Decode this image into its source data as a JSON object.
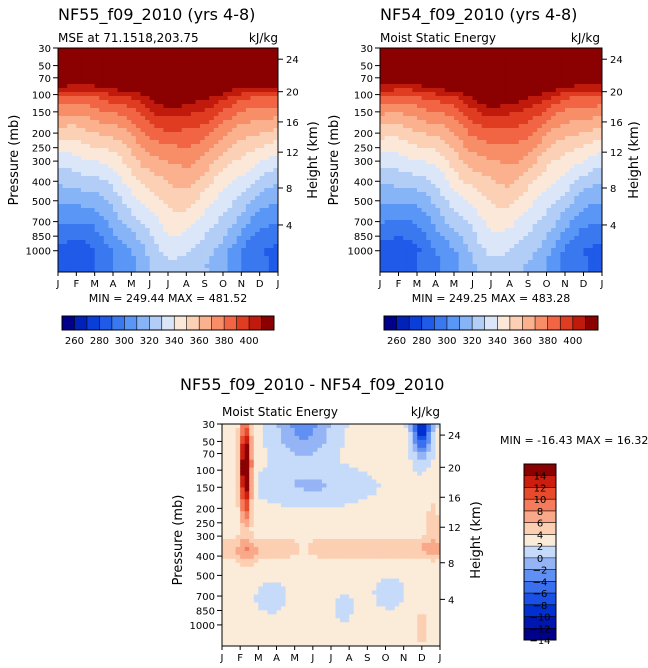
{
  "chart_data": [
    {
      "type": "heatmap",
      "title": "NF55_f09_2010 (yrs 4-8)",
      "subtitle": "MSE at 71.1518,203.75",
      "units": "kJ/kg",
      "ylabel": "Pressure (mb)",
      "ylabel_right": "Height (km)",
      "x_ticks": [
        "J",
        "F",
        "M",
        "A",
        "M",
        "J",
        "J",
        "A",
        "S",
        "O",
        "N",
        "D",
        "J"
      ],
      "y_ticks": [
        "30",
        "50",
        "70",
        "100",
        "150",
        "200",
        "250",
        "300",
        "400",
        "500",
        "700",
        "850",
        "1000"
      ],
      "y_ticks_right": [
        "24",
        "20",
        "16",
        "12",
        "8",
        "4"
      ],
      "stats": "MIN = 249.44 MAX = 481.52",
      "min": 249.44,
      "max": 481.52,
      "colorbar": {
        "levels": [
          250,
          260,
          270,
          280,
          290,
          300,
          310,
          320,
          330,
          340,
          350,
          360,
          370,
          380,
          390,
          400,
          410
        ],
        "labels": [
          "260",
          "280",
          "300",
          "320",
          "340",
          "360",
          "380",
          "400"
        ]
      }
    },
    {
      "type": "heatmap",
      "title": "NF54_f09_2010 (yrs 4-8)",
      "subtitle": "Moist Static Energy",
      "units": "kJ/kg",
      "ylabel": "Pressure (mb)",
      "ylabel_right": "Height (km)",
      "x_ticks": [
        "J",
        "F",
        "M",
        "A",
        "M",
        "J",
        "J",
        "A",
        "S",
        "O",
        "N",
        "D",
        "J"
      ],
      "y_ticks": [
        "30",
        "50",
        "70",
        "100",
        "150",
        "200",
        "250",
        "300",
        "400",
        "500",
        "700",
        "850",
        "1000"
      ],
      "y_ticks_right": [
        "24",
        "20",
        "16",
        "12",
        "8",
        "4"
      ],
      "stats": "MIN = 249.25 MAX = 483.28",
      "min": 249.25,
      "max": 483.28,
      "colorbar": {
        "levels": [
          250,
          260,
          270,
          280,
          290,
          300,
          310,
          320,
          330,
          340,
          350,
          360,
          370,
          380,
          390,
          400,
          410
        ],
        "labels": [
          "260",
          "280",
          "300",
          "320",
          "340",
          "360",
          "380",
          "400"
        ]
      }
    },
    {
      "type": "heatmap",
      "title": "NF55_f09_2010 - NF54_f09_2010",
      "subtitle": "Moist Static Energy",
      "units": "kJ/kg",
      "ylabel": "Pressure (mb)",
      "ylabel_right": "Height (km)",
      "x_ticks": [
        "J",
        "F",
        "M",
        "A",
        "M",
        "J",
        "J",
        "A",
        "S",
        "O",
        "N",
        "D",
        "J"
      ],
      "y_ticks": [
        "30",
        "50",
        "70",
        "100",
        "150",
        "200",
        "250",
        "300",
        "400",
        "500",
        "700",
        "850",
        "1000"
      ],
      "y_ticks_right": [
        "24",
        "20",
        "16",
        "12",
        "8",
        "4"
      ],
      "stats": "MIN = -16.43 MAX =  16.32",
      "min": -16.43,
      "max": 16.32,
      "colorbar": {
        "levels": [
          -14,
          -12,
          -10,
          -8,
          -6,
          -4,
          -2,
          0,
          2,
          4,
          6,
          8,
          10,
          12,
          14
        ],
        "labels": [
          "14",
          "12",
          "10",
          "8",
          "6",
          "4",
          "2",
          "0",
          "−2",
          "−4",
          "−6",
          "−8",
          "−10",
          "−12",
          "−14"
        ]
      }
    }
  ],
  "palette": {
    "mse": [
      "#00008b",
      "#0022b8",
      "#0a3ed8",
      "#1f5be8",
      "#3a78f0",
      "#5a96f5",
      "#86b4f7",
      "#b2cdf6",
      "#dbe6f8",
      "#fbe8d8",
      "#fcd0b4",
      "#fbb08e",
      "#f88e68",
      "#f26544",
      "#e03c22",
      "#c01a0c",
      "#8b0000"
    ],
    "diff": [
      "#00008b",
      "#0016b0",
      "#0030d0",
      "#1a50e6",
      "#3a70f0",
      "#6090f4",
      "#94b4f6",
      "#c6daf9",
      "#fbebd9",
      "#fccfb3",
      "#f9a98a",
      "#f47b5c",
      "#e84a2c",
      "#cc1e0e",
      "#8b0000"
    ]
  }
}
